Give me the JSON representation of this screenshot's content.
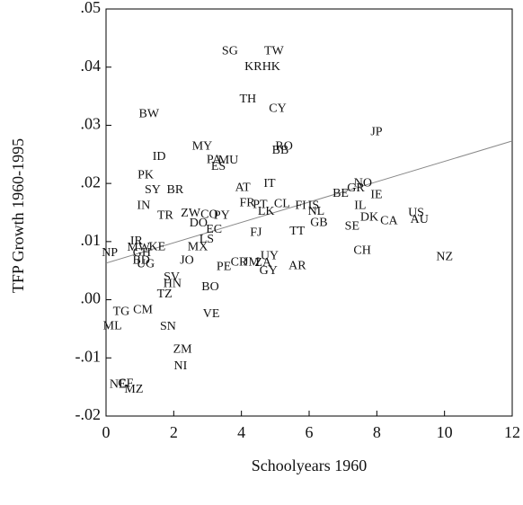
{
  "chart_data": {
    "type": "scatter",
    "x_label": "Schoolyears 1960",
    "y_label": "TFP Growth 1960-1995",
    "labels": [
      "SG",
      "TW",
      "KR",
      "HK",
      "TH",
      "CY",
      "BW",
      "JP",
      "MY",
      "RO",
      "BB",
      "PA",
      "MU",
      "ES",
      "ID",
      "PK",
      "NO",
      "GR",
      "AT",
      "IT",
      "SY",
      "BR",
      "BE",
      "IE",
      "FR",
      "PT",
      "CL",
      "FI",
      "IS",
      "NL",
      "IL",
      "LK",
      "IN",
      "GB",
      "DK",
      "CA",
      "US",
      "AU",
      "TR",
      "ZW",
      "CO",
      "PY",
      "DO",
      "EC",
      "SE",
      "FJ",
      "TT",
      "LS",
      "MX",
      "CH",
      "NZ",
      "UY",
      "NP",
      "IR",
      "MW",
      "KE",
      "GH",
      "BD",
      "UG",
      "JO",
      "PE",
      "CR",
      "JM",
      "ZA",
      "GY",
      "AR",
      "SV",
      "HN",
      "BO",
      "TZ",
      "TG",
      "CM",
      "VE",
      "ML",
      "SN",
      "ZM",
      "NI",
      "NE",
      "CF",
      "MZ"
    ],
    "x": [
      3.66,
      4.96,
      4.35,
      4.88,
      4.19,
      5.07,
      1.27,
      7.99,
      2.84,
      5.26,
      5.15,
      3.19,
      3.61,
      3.32,
      1.57,
      1.17,
      7.59,
      7.38,
      4.04,
      4.83,
      1.38,
      2.04,
      6.93,
      7.99,
      4.17,
      4.55,
      5.2,
      5.75,
      6.13,
      6.21,
      7.51,
      4.73,
      1.11,
      6.29,
      7.78,
      8.36,
      9.16,
      9.26,
      1.75,
      2.5,
      3.05,
      3.42,
      2.73,
      3.19,
      7.27,
      4.43,
      5.65,
      2.97,
      2.71,
      7.57,
      10.0,
      4.83,
      0.11,
      0.9,
      0.96,
      1.51,
      1.06,
      1.04,
      1.17,
      2.39,
      3.48,
      3.93,
      4.3,
      4.64,
      4.8,
      5.65,
      1.94,
      1.96,
      3.08,
      1.73,
      0.45,
      1.09,
      3.11,
      0.19,
      1.83,
      2.26,
      2.2,
      0.35,
      0.58,
      0.82
    ],
    "values": [
      0.0427,
      0.0427,
      0.04,
      0.04,
      0.0344,
      0.0328,
      0.0319,
      0.0288,
      0.0263,
      0.0263,
      0.0256,
      0.024,
      0.0239,
      0.0228,
      0.0245,
      0.0214,
      0.02,
      0.0191,
      0.0192,
      0.0199,
      0.0188,
      0.0188,
      0.0182,
      0.018,
      0.0166,
      0.0163,
      0.0164,
      0.0161,
      0.0161,
      0.0151,
      0.0161,
      0.0151,
      0.0161,
      0.0132,
      0.0141,
      0.0135,
      0.0149,
      0.0137,
      0.0144,
      0.0148,
      0.0146,
      0.0144,
      0.0131,
      0.012,
      0.0126,
      0.0115,
      0.0117,
      0.0103,
      0.009,
      0.0084,
      0.0073,
      0.0075,
      0.008,
      0.01,
      0.0089,
      0.009,
      0.008,
      0.0067,
      0.0061,
      0.0067,
      0.0056,
      0.0064,
      0.0064,
      0.0063,
      0.0049,
      0.0058,
      0.0038,
      0.0027,
      0.0021,
      0.0009,
      -0.0021,
      -0.0018,
      -0.0025,
      -0.0046,
      -0.0047,
      -0.0086,
      -0.0115,
      -0.0146,
      -0.0145,
      -0.0155
    ],
    "trend_line": {
      "x": [
        0,
        12
      ],
      "values": [
        0.0063,
        0.0273
      ],
      "color": "#888888"
    },
    "xlim": [
      0,
      12
    ],
    "ylim": [
      -0.02,
      0.05
    ],
    "xticks": [
      0,
      2,
      4,
      6,
      8,
      10,
      12
    ],
    "yticks": [
      {
        "value": -0.02,
        "label": "-.02"
      },
      {
        "value": -0.01,
        "label": "-.01"
      },
      {
        "value": 0,
        "label": ".00"
      },
      {
        "value": 0.01,
        "label": ".01"
      },
      {
        "value": 0.02,
        "label": ".02"
      },
      {
        "value": 0.03,
        "label": ".03"
      },
      {
        "value": 0.04,
        "label": ".04"
      },
      {
        "value": 0.05,
        "label": ".05"
      }
    ]
  }
}
